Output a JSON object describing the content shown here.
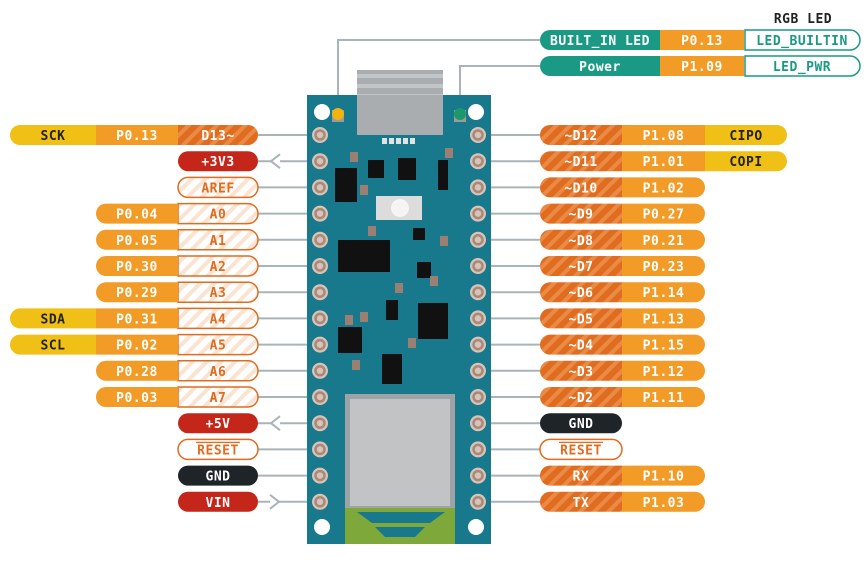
{
  "colors": {
    "board": "#17798b",
    "digital": "#e06c1f",
    "port": "#f29b26",
    "function": "#f0c016",
    "power": "#c4261a",
    "gnd": "#1f2428",
    "analog_border": "#e06c1f",
    "led_teal": "#1a9a84",
    "wire": "#a9b4b8"
  },
  "rgb_led_title": "RGB LED",
  "leds": [
    {
      "label": "BUILT_IN LED",
      "port": "P0.13",
      "name": "LED_BUILTIN",
      "led_color": "#f2b20f"
    },
    {
      "label": "Power",
      "port": "P1.09",
      "name": "LED_PWR",
      "led_color": "#1a9a6a"
    }
  ],
  "left_pins": [
    {
      "pin": "D13~",
      "type": "digital",
      "port": "P0.13",
      "func": "SCK"
    },
    {
      "pin": "+3V3",
      "type": "power",
      "arrow": "out"
    },
    {
      "pin": "AREF",
      "type": "analog"
    },
    {
      "pin": "A0",
      "type": "analog",
      "port": "P0.04"
    },
    {
      "pin": "A1",
      "type": "analog",
      "port": "P0.05"
    },
    {
      "pin": "A2",
      "type": "analog",
      "port": "P0.30"
    },
    {
      "pin": "A3",
      "type": "analog",
      "port": "P0.29"
    },
    {
      "pin": "A4",
      "type": "analog",
      "port": "P0.31",
      "func": "SDA"
    },
    {
      "pin": "A5",
      "type": "analog",
      "port": "P0.02",
      "func": "SCL"
    },
    {
      "pin": "A6",
      "type": "analog",
      "port": "P0.28"
    },
    {
      "pin": "A7",
      "type": "analog",
      "port": "P0.03"
    },
    {
      "pin": "+5V",
      "type": "power",
      "arrow": "out"
    },
    {
      "pin": "RESET",
      "type": "reset"
    },
    {
      "pin": "GND",
      "type": "gnd"
    },
    {
      "pin": "VIN",
      "type": "power",
      "arrow": "in"
    }
  ],
  "right_pins": [
    {
      "pin": "~D12",
      "type": "digital",
      "port": "P1.08",
      "func": "CIPO"
    },
    {
      "pin": "~D11",
      "type": "digital",
      "port": "P1.01",
      "func": "COPI"
    },
    {
      "pin": "~D10",
      "type": "digital",
      "port": "P1.02"
    },
    {
      "pin": "~D9",
      "type": "digital",
      "port": "P0.27"
    },
    {
      "pin": "~D8",
      "type": "digital",
      "port": "P0.21"
    },
    {
      "pin": "~D7",
      "type": "digital",
      "port": "P0.23"
    },
    {
      "pin": "~D6",
      "type": "digital",
      "port": "P1.14"
    },
    {
      "pin": "~D5",
      "type": "digital",
      "port": "P1.13"
    },
    {
      "pin": "~D4",
      "type": "digital",
      "port": "P1.15"
    },
    {
      "pin": "~D3",
      "type": "digital",
      "port": "P1.12"
    },
    {
      "pin": "~D2",
      "type": "digital",
      "port": "P1.11"
    },
    {
      "pin": "GND",
      "type": "gnd"
    },
    {
      "pin": "RESET",
      "type": "reset"
    },
    {
      "pin": "RX",
      "type": "digital",
      "port": "P1.10"
    },
    {
      "pin": "TX",
      "type": "digital",
      "port": "P1.03"
    }
  ]
}
